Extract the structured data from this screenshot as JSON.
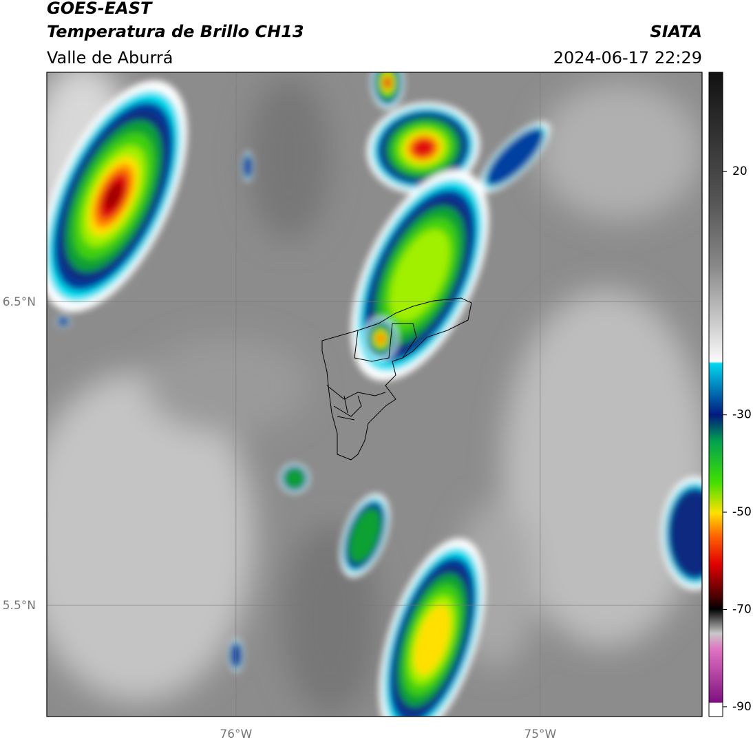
{
  "header": {
    "title": "GOES-EAST",
    "subtitle": "Temperatura de Brillo CH13",
    "region": "Valle de Aburrá",
    "source": "SIATA",
    "datetime": "2024-06-17 22:29"
  },
  "map": {
    "xlim": [
      -76.622,
      -74.468
    ],
    "ylim": [
      5.133,
      7.255
    ],
    "xticks": [
      {
        "value": -76,
        "label": "76°W"
      },
      {
        "value": -75,
        "label": "75°W"
      }
    ],
    "yticks": [
      {
        "value": 6.5,
        "label": "6.5°N"
      },
      {
        "value": 5.5,
        "label": "5.5°N"
      }
    ],
    "grid": true
  },
  "colorbar": {
    "lim": [
      -92,
      40.4
    ],
    "ticks": [
      20,
      -30,
      -50,
      -70,
      -90
    ]
  }
}
